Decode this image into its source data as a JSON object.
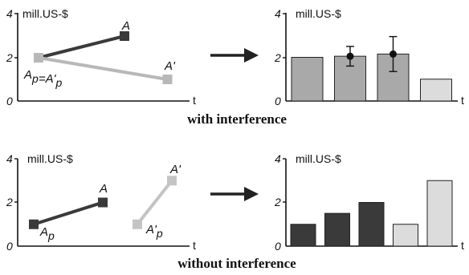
{
  "captions": {
    "top": "with interference",
    "bottom": "without interference"
  },
  "chart_data": [
    {
      "type": "line",
      "panel": "top-left",
      "ylabel": "mill.US-$",
      "xlabel": "t",
      "ylim": [
        0,
        4
      ],
      "yticks": [
        "0",
        "2",
        "4"
      ],
      "series": [
        {
          "name": "A",
          "color": "#3a3a3a",
          "x": [
            0,
            1
          ],
          "y": [
            2,
            3
          ],
          "labels": [
            "Ap=A'p",
            "A"
          ]
        },
        {
          "name": "A'",
          "color": "#b8b8b8",
          "x": [
            0,
            1.5
          ],
          "y": [
            2,
            1
          ],
          "labels": [
            "",
            "A'"
          ]
        }
      ]
    },
    {
      "type": "bar",
      "panel": "top-right",
      "ylabel": "mill.US-$",
      "xlabel": "t",
      "ylim": [
        0,
        4
      ],
      "yticks": [
        "0",
        "2",
        "4"
      ],
      "values": [
        2.0,
        2.05,
        2.15,
        1.0
      ],
      "colors": [
        "#a9a9a9",
        "#a9a9a9",
        "#a9a9a9",
        "#dcdcdc"
      ],
      "error_bars": [
        null,
        {
          "mean": 2.05,
          "low": 1.6,
          "high": 2.5
        },
        {
          "mean": 2.15,
          "low": 1.35,
          "high": 2.95
        },
        null
      ]
    },
    {
      "type": "line",
      "panel": "bottom-left",
      "ylabel": "mill.US-$",
      "xlabel": "t",
      "ylim": [
        0,
        4
      ],
      "yticks": [
        "0",
        "2",
        "4"
      ],
      "series": [
        {
          "name": "A",
          "color": "#3a3a3a",
          "x": [
            0,
            1
          ],
          "y": [
            1,
            2
          ],
          "labels": [
            "Ap",
            "A"
          ]
        },
        {
          "name": "A'",
          "color": "#c4c4c4",
          "x": [
            1.5,
            2
          ],
          "y": [
            1,
            3
          ],
          "labels": [
            "A'p",
            "A'"
          ]
        }
      ]
    },
    {
      "type": "bar",
      "panel": "bottom-right",
      "ylabel": "mill.US-$",
      "xlabel": "t",
      "ylim": [
        0,
        4
      ],
      "yticks": [
        "0",
        "2",
        "4"
      ],
      "values": [
        1.0,
        1.5,
        2.0,
        1.0,
        3.0
      ],
      "colors": [
        "#3a3a3a",
        "#3a3a3a",
        "#3a3a3a",
        "#dcdcdc",
        "#dcdcdc"
      ]
    }
  ]
}
